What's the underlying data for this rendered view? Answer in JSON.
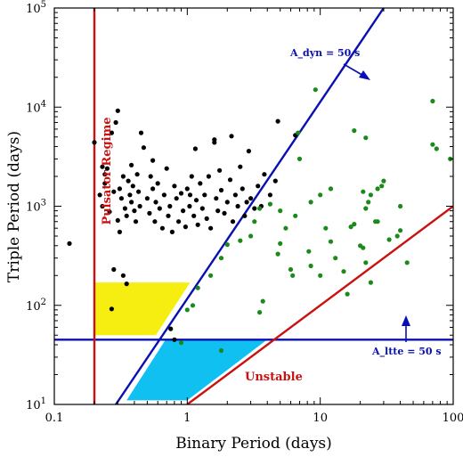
{
  "chart_data": {
    "type": "scatter",
    "title": "",
    "xlabel": "Binary Period (days)",
    "ylabel": "Triple Period (days)",
    "xscale": "log",
    "yscale": "log",
    "xlim": [
      0.1,
      100
    ],
    "ylim": [
      10,
      100000
    ],
    "grid": false,
    "x_ticks": [
      {
        "value": 0.1,
        "label": "0.1"
      },
      {
        "value": 1,
        "label": "1"
      },
      {
        "value": 10,
        "label": "10"
      },
      {
        "value": 100,
        "label": "100"
      }
    ],
    "y_ticks": [
      {
        "value": 10,
        "base": "10",
        "exp": "1"
      },
      {
        "value": 100,
        "base": "10",
        "exp": "2"
      },
      {
        "value": 1000,
        "base": "10",
        "exp": "3"
      },
      {
        "value": 10000,
        "base": "10",
        "exp": "4"
      },
      {
        "value": 100000,
        "base": "10",
        "exp": "5"
      }
    ],
    "colors": {
      "black_points": "#000000",
      "green_points": "#1a8a1a",
      "blue_line": "#0a10b0",
      "red_line": "#cc1010",
      "yellow_region": "#f5ee10",
      "cyan_region": "#10c0f0"
    },
    "series": [
      {
        "color": "black",
        "points": [
          [
            0.13,
            420
          ],
          [
            0.2,
            4400
          ],
          [
            0.23,
            2500
          ],
          [
            0.25,
            2400
          ],
          [
            0.24,
            1700
          ],
          [
            0.22,
            1300
          ],
          [
            0.23,
            1000
          ],
          [
            0.26,
            880
          ],
          [
            0.28,
            1400
          ],
          [
            0.27,
            5500
          ],
          [
            0.3,
            9200
          ],
          [
            0.29,
            7000
          ],
          [
            0.31,
            1500
          ],
          [
            0.32,
            1200
          ],
          [
            0.33,
            2000
          ],
          [
            0.34,
            950
          ],
          [
            0.35,
            800
          ],
          [
            0.36,
            1800
          ],
          [
            0.37,
            1300
          ],
          [
            0.38,
            1100
          ],
          [
            0.39,
            1600
          ],
          [
            0.4,
            900
          ],
          [
            0.41,
            700
          ],
          [
            0.42,
            2100
          ],
          [
            0.43,
            1400
          ],
          [
            0.44,
            1000
          ],
          [
            0.45,
            5500
          ],
          [
            0.47,
            3900
          ],
          [
            0.5,
            1200
          ],
          [
            0.52,
            850
          ],
          [
            0.53,
            2000
          ],
          [
            0.55,
            1500
          ],
          [
            0.57,
            700
          ],
          [
            0.58,
            1100
          ],
          [
            0.6,
            1700
          ],
          [
            0.62,
            950
          ],
          [
            0.65,
            600
          ],
          [
            0.67,
            1300
          ],
          [
            0.7,
            2400
          ],
          [
            0.72,
            800
          ],
          [
            0.74,
            1000
          ],
          [
            0.77,
            550
          ],
          [
            0.8,
            1600
          ],
          [
            0.83,
            1200
          ],
          [
            0.86,
            700
          ],
          [
            0.9,
            1350
          ],
          [
            0.93,
            900
          ],
          [
            0.97,
            620
          ],
          [
            1.0,
            1500
          ],
          [
            1.04,
            1000
          ],
          [
            1.08,
            2000
          ],
          [
            1.12,
            800
          ],
          [
            1.17,
            1150
          ],
          [
            1.2,
            650
          ],
          [
            1.25,
            1700
          ],
          [
            1.3,
            950
          ],
          [
            1.35,
            1300
          ],
          [
            1.4,
            750
          ],
          [
            1.45,
            2000
          ],
          [
            1.5,
            600
          ],
          [
            1.6,
            4400
          ],
          [
            1.6,
            4700
          ],
          [
            1.65,
            1200
          ],
          [
            1.7,
            900
          ],
          [
            1.75,
            2300
          ],
          [
            1.8,
            1450
          ],
          [
            1.9,
            850
          ],
          [
            2.0,
            1100
          ],
          [
            2.1,
            1850
          ],
          [
            2.15,
            5100
          ],
          [
            2.2,
            700
          ],
          [
            2.3,
            1300
          ],
          [
            2.4,
            1000
          ],
          [
            2.5,
            2500
          ],
          [
            2.6,
            1500
          ],
          [
            2.7,
            800
          ],
          [
            2.8,
            1100
          ],
          [
            2.9,
            3600
          ],
          [
            3.0,
            1200
          ],
          [
            3.2,
            950
          ],
          [
            3.4,
            1600
          ],
          [
            3.6,
            1000
          ],
          [
            3.8,
            2100
          ],
          [
            4.2,
            1300
          ],
          [
            4.6,
            1800
          ],
          [
            4.8,
            7200
          ],
          [
            6.5,
            5200
          ],
          [
            0.28,
            230
          ],
          [
            0.33,
            200
          ],
          [
            0.35,
            165
          ],
          [
            0.27,
            92
          ],
          [
            0.75,
            58
          ],
          [
            0.8,
            45
          ],
          [
            0.3,
            720
          ],
          [
            0.31,
            550
          ],
          [
            0.38,
            2600
          ],
          [
            0.55,
            2900
          ],
          [
            1.05,
            1300
          ],
          [
            1.15,
            3800
          ],
          [
            0.24,
            2100
          ]
        ]
      },
      {
        "color": "green",
        "points": [
          [
            9.2,
            15000
          ],
          [
            70,
            11500
          ],
          [
            6.8,
            5500
          ],
          [
            18,
            5800
          ],
          [
            22,
            4900
          ],
          [
            70,
            4200
          ],
          [
            75,
            3800
          ],
          [
            95,
            3000
          ],
          [
            30,
            1800
          ],
          [
            29,
            1600
          ],
          [
            27,
            1500
          ],
          [
            23,
            1100
          ],
          [
            24,
            1300
          ],
          [
            22,
            950
          ],
          [
            21,
            1400
          ],
          [
            40,
            1000
          ],
          [
            11,
            600
          ],
          [
            12,
            1500
          ],
          [
            10,
            1300
          ],
          [
            8.5,
            1100
          ],
          [
            7.0,
            3000
          ],
          [
            6.5,
            800
          ],
          [
            5.0,
            900
          ],
          [
            4.2,
            1050
          ],
          [
            3.5,
            950
          ],
          [
            3.2,
            700
          ],
          [
            3.0,
            500
          ],
          [
            2.5,
            450
          ],
          [
            2.0,
            410
          ],
          [
            1.8,
            300
          ],
          [
            1.5,
            200
          ],
          [
            1.2,
            150
          ],
          [
            1.1,
            100
          ],
          [
            1.0,
            90
          ],
          [
            5.5,
            600
          ],
          [
            5.0,
            420
          ],
          [
            4.8,
            330
          ],
          [
            6.0,
            230
          ],
          [
            6.2,
            200
          ],
          [
            8.2,
            350
          ],
          [
            8.5,
            250
          ],
          [
            10,
            200
          ],
          [
            12,
            440
          ],
          [
            13,
            300
          ],
          [
            15,
            220
          ],
          [
            16,
            130
          ],
          [
            17,
            620
          ],
          [
            18,
            660
          ],
          [
            20,
            400
          ],
          [
            21,
            380
          ],
          [
            22,
            270
          ],
          [
            24,
            170
          ],
          [
            26,
            700
          ],
          [
            27,
            700
          ],
          [
            33,
            460
          ],
          [
            38,
            500
          ],
          [
            40,
            570
          ],
          [
            45,
            270
          ],
          [
            3.7,
            110
          ],
          [
            3.5,
            85
          ],
          [
            1.8,
            35
          ],
          [
            0.9,
            42
          ]
        ]
      }
    ],
    "lines": [
      {
        "name": "A_dyn = 50 s",
        "color": "blue",
        "points": [
          [
            0.29,
            10
          ],
          [
            30,
            100000
          ]
        ]
      },
      {
        "name": "A_ltte = 50 s",
        "color": "blue",
        "points": [
          [
            0.1,
            45
          ],
          [
            100,
            45
          ]
        ]
      },
      {
        "name": "Pulsator Regime",
        "color": "red",
        "points": [
          [
            0.2,
            10
          ],
          [
            0.2,
            100000
          ]
        ]
      },
      {
        "name": "Unstable",
        "color": "red",
        "points": [
          [
            1.0,
            10
          ],
          [
            100,
            1000
          ]
        ]
      }
    ],
    "regions": [
      {
        "color": "yellow",
        "points": [
          [
            0.2,
            170
          ],
          [
            1.05,
            170
          ],
          [
            0.58,
            50
          ],
          [
            0.2,
            50
          ]
        ]
      },
      {
        "color": "cyan",
        "points": [
          [
            0.35,
            11
          ],
          [
            1.0,
            11
          ],
          [
            3.9,
            44
          ],
          [
            0.68,
            44
          ]
        ]
      }
    ],
    "annotations": [
      {
        "text": "A_dyn = 50 s",
        "color": "blue"
      },
      {
        "text": "A_ltte = 50 s",
        "color": "blue"
      },
      {
        "text": "Pulsator Regime",
        "color": "red"
      },
      {
        "text": "Unstable",
        "color": "red"
      }
    ]
  }
}
